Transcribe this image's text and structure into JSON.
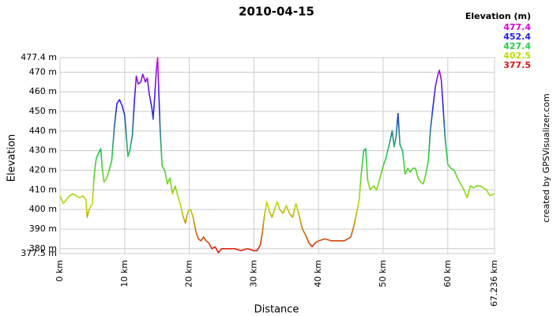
{
  "chart_data": {
    "type": "line",
    "title": "2010-04-15",
    "x_label": "Distance",
    "y_label": "Elevation",
    "credit": "created by GPSVisualizer.com",
    "legend": {
      "title": "Elevation (m)",
      "entries": [
        {
          "value": 477.4,
          "color": "#dd00dd"
        },
        {
          "value": 452.4,
          "color": "#2222ee"
        },
        {
          "value": 427.4,
          "color": "#22cc44"
        },
        {
          "value": 402.5,
          "color": "#bbdd00"
        },
        {
          "value": 377.5,
          "color": "#dd1111"
        }
      ]
    },
    "grid": true,
    "xlim": [
      0,
      67.236
    ],
    "ylim": [
      377.5,
      477.4
    ],
    "xticks": [
      {
        "value": 0,
        "label": "0 km"
      },
      {
        "value": 10,
        "label": "10 km"
      },
      {
        "value": 20,
        "label": "20 km"
      },
      {
        "value": 30,
        "label": "30 km"
      },
      {
        "value": 40,
        "label": "40 km"
      },
      {
        "value": 50,
        "label": "50 km"
      },
      {
        "value": 60,
        "label": "60 km"
      },
      {
        "value": 67.236,
        "label": "67.236 km"
      }
    ],
    "yticks": [
      {
        "value": 377.5,
        "label": "377.5 m"
      },
      {
        "value": 380,
        "label": "380 m"
      },
      {
        "value": 390,
        "label": "390 m"
      },
      {
        "value": 400,
        "label": "400 m"
      },
      {
        "value": 410,
        "label": "410 m"
      },
      {
        "value": 420,
        "label": "420 m"
      },
      {
        "value": 430,
        "label": "430 m"
      },
      {
        "value": 440,
        "label": "440 m"
      },
      {
        "value": 450,
        "label": "450 m"
      },
      {
        "value": 460,
        "label": "460 m"
      },
      {
        "value": 470,
        "label": "470 m"
      },
      {
        "value": 477.4,
        "label": "477.4 m"
      }
    ],
    "x": [
      0,
      0.5,
      1,
      1.5,
      2,
      3,
      3.5,
      4,
      4.2,
      4.5,
      5,
      5.3,
      5.6,
      6,
      6.3,
      6.5,
      6.8,
      7.2,
      7.6,
      8,
      8.4,
      8.8,
      9.2,
      9.6,
      10,
      10.2,
      10.5,
      10.8,
      11.2,
      11.5,
      11.8,
      12.1,
      12.5,
      12.8,
      13.2,
      13.5,
      13.8,
      14.2,
      14.4,
      14.6,
      14.9,
      15.1,
      15.3,
      15.5,
      15.8,
      16.2,
      16.6,
      17,
      17.4,
      17.8,
      18.2,
      18.6,
      19,
      19.4,
      19.8,
      20.2,
      20.6,
      21,
      21.4,
      21.8,
      22.2,
      22.6,
      23,
      23.5,
      24,
      24.5,
      25,
      26,
      27,
      28,
      29,
      30,
      30.5,
      31,
      31.3,
      31.6,
      32,
      32.4,
      32.8,
      33.2,
      33.6,
      34,
      34.5,
      35,
      35.5,
      36,
      36.5,
      37,
      37.5,
      38,
      38.5,
      39,
      39.5,
      40,
      41,
      42,
      43,
      44,
      45,
      45.5,
      46,
      46.3,
      46.6,
      47,
      47.3,
      47.6,
      48,
      48.5,
      49,
      49.5,
      50,
      50.5,
      51,
      51.4,
      51.7,
      52,
      52.3,
      52.6,
      53,
      53.4,
      53.8,
      54.2,
      54.6,
      55,
      55.4,
      55.8,
      56.2,
      56.6,
      57,
      57.3,
      57.7,
      58.1,
      58.5,
      58.7,
      59,
      59.3,
      59.6,
      60,
      60.5,
      61,
      61.5,
      62,
      62.5,
      63,
      63.5,
      64,
      64.5,
      65,
      65.5,
      66,
      66.5,
      67.236
    ],
    "values": [
      407,
      403,
      405,
      407,
      408,
      406,
      407,
      405,
      396,
      400,
      403,
      418,
      426,
      429,
      431,
      422,
      414,
      416,
      420,
      425,
      442,
      454,
      456,
      453,
      448,
      440,
      427,
      430,
      438,
      455,
      468,
      464,
      465,
      469,
      465,
      467,
      459,
      452,
      446,
      455,
      471,
      477.4,
      458,
      440,
      422,
      420,
      413,
      416,
      408,
      412,
      407,
      403,
      397,
      393,
      399,
      400,
      396,
      389,
      385,
      384,
      386,
      384,
      383,
      380,
      381,
      378,
      380,
      380,
      380,
      379,
      380,
      379,
      379,
      382,
      388,
      396,
      404,
      399,
      396,
      400,
      404,
      400,
      398,
      402,
      398,
      396,
      403,
      397,
      390,
      387,
      383,
      381,
      383,
      384,
      385,
      384,
      384,
      384,
      386,
      392,
      400,
      405,
      418,
      430,
      431,
      415,
      410,
      412,
      410,
      416,
      422,
      427,
      434,
      440,
      432,
      437,
      449,
      433,
      430,
      418,
      421,
      419,
      421,
      421,
      416,
      414,
      413,
      418,
      425,
      440,
      452,
      463,
      469,
      471,
      466,
      451,
      436,
      423,
      421,
      420,
      416,
      413,
      410,
      406,
      412,
      411,
      412,
      412,
      411,
      410,
      407,
      408
    ]
  }
}
